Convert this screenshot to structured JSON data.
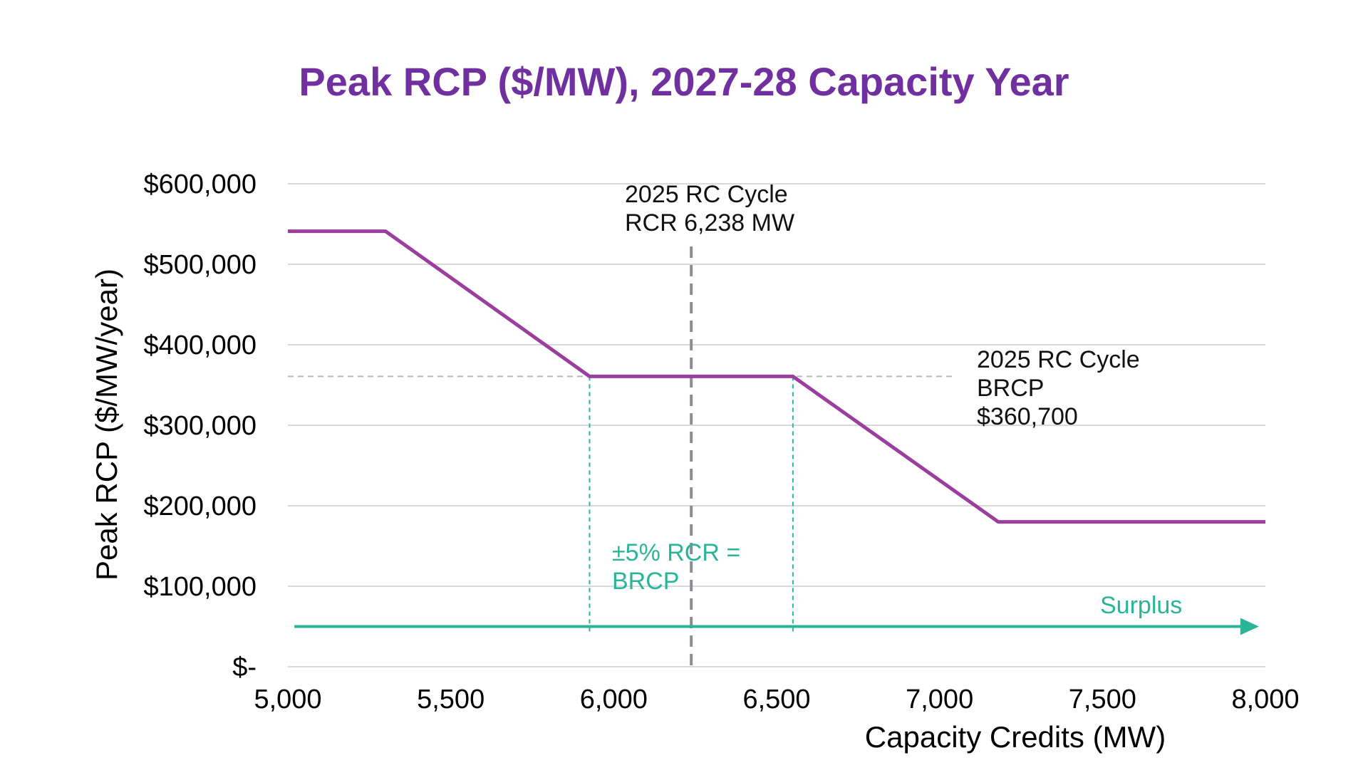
{
  "chart_data": {
    "type": "line",
    "title": "Peak RCP ($/MW), 2027-28 Capacity Year",
    "xlabel": "Capacity Credits (MW)",
    "ylabel": "Peak RCP ($/MW/year)",
    "xlim": [
      5000,
      8000
    ],
    "ylim": [
      0,
      600000
    ],
    "x_ticks": [
      {
        "value": 5000,
        "label": "5,000"
      },
      {
        "value": 5500,
        "label": "5,500"
      },
      {
        "value": 6000,
        "label": "6,000"
      },
      {
        "value": 6500,
        "label": "6,500"
      },
      {
        "value": 7000,
        "label": "7,000"
      },
      {
        "value": 7500,
        "label": "7,500"
      },
      {
        "value": 8000,
        "label": "8,000"
      }
    ],
    "y_ticks": [
      {
        "value": 0,
        "label": "$-"
      },
      {
        "value": 100000,
        "label": "$100,000"
      },
      {
        "value": 200000,
        "label": "$200,000"
      },
      {
        "value": 300000,
        "label": "$300,000"
      },
      {
        "value": 400000,
        "label": "$400,000"
      },
      {
        "value": 500000,
        "label": "$500,000"
      },
      {
        "value": 600000,
        "label": "$600,000"
      }
    ],
    "grid": true,
    "series": [
      {
        "color": "#9b3f9e",
        "points": [
          {
            "x": 5000,
            "y": 541000
          },
          {
            "x": 5300,
            "y": 541000
          },
          {
            "x": 5926,
            "y": 360700
          },
          {
            "x": 6550,
            "y": 360700
          },
          {
            "x": 7180,
            "y": 180000
          },
          {
            "x": 8000,
            "y": 180000
          }
        ]
      }
    ],
    "reference_lines": {
      "rcr_vertical": {
        "x": 6238,
        "color": "#8c8c96"
      },
      "brcp_horizontal": {
        "y": 360700,
        "x_range": [
          5000,
          7040
        ],
        "color": "#b8b8b8"
      },
      "band_lines": {
        "x": [
          5926,
          6550
        ],
        "y_range": [
          50000,
          360700
        ],
        "color": "#2ab59a"
      },
      "surplus_arrow": {
        "y": 50000,
        "x_range": [
          5020,
          7980
        ],
        "color": "#2ab59a"
      }
    },
    "annotations": {
      "rcr": [
        "2025 RC Cycle",
        "RCR 6,238 MW"
      ],
      "brcp": [
        "2025 RC Cycle",
        "BRCP",
        "$360,700"
      ],
      "band": [
        "±5% RCR =",
        "BRCP"
      ],
      "surplus": "Surplus"
    }
  }
}
